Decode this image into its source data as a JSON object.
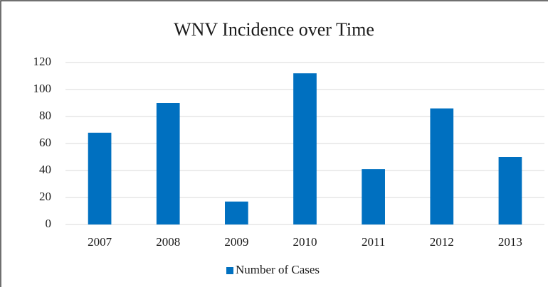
{
  "chart_data": {
    "type": "bar",
    "title": "WNV Incidence over Time",
    "categories": [
      "2007",
      "2008",
      "2009",
      "2010",
      "2011",
      "2012",
      "2013"
    ],
    "series": [
      {
        "name": "Number of Cases",
        "color": "#0070c0",
        "values": [
          68,
          90,
          17,
          112,
          41,
          86,
          50
        ]
      }
    ],
    "ylim": [
      0,
      120
    ],
    "yticks": [
      0,
      20,
      40,
      60,
      80,
      100,
      120
    ],
    "grid": true,
    "legend": "bottom"
  }
}
